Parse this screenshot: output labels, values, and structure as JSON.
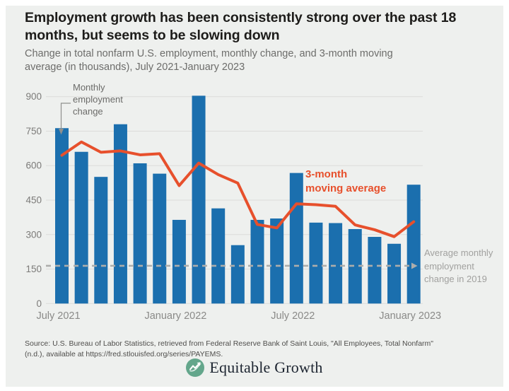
{
  "header": {
    "title_lines": [
      "Employment growth has been consistently strong over the past 18",
      "months, but seems to be slowing down"
    ],
    "subtitle_lines": [
      "Change in total nonfarm U.S. employment, monthly change, and 3-month moving",
      "average (in thousands), July 2021-January 2023"
    ]
  },
  "chart_data": {
    "type": "bar",
    "title": "Change in total nonfarm U.S. employment, monthly change, and 3-month moving average (in thousands), July 2021-January 2023",
    "categories": [
      "Jul 2021",
      "Aug 2021",
      "Sep 2021",
      "Oct 2021",
      "Nov 2021",
      "Dec 2021",
      "Jan 2022",
      "Feb 2022",
      "Mar 2022",
      "Apr 2022",
      "May 2022",
      "Jun 2022",
      "Jul 2022",
      "Aug 2022",
      "Sep 2022",
      "Oct 2022",
      "Nov 2022",
      "Dec 2022",
      "Jan 2023"
    ],
    "series": [
      {
        "name": "Monthly employment change",
        "type": "bar",
        "color": "#1b6fae",
        "values": [
          763,
          660,
          551,
          780,
          610,
          565,
          364,
          904,
          414,
          254,
          364,
          370,
          568,
          352,
          350,
          324,
          290,
          260,
          517
        ]
      },
      {
        "name": "3-month moving average",
        "type": "line",
        "color": "#e7502c",
        "values": [
          645,
          703,
          658,
          664,
          647,
          652,
          513,
          611,
          561,
          524,
          344,
          329,
          434,
          430,
          423,
          342,
          321,
          291,
          356
        ]
      }
    ],
    "baseline": {
      "value": 164,
      "label": "Average monthly employment change in 2019",
      "color": "#adadab"
    },
    "xlabel": "",
    "ylabel": "",
    "ylim": [
      0,
      900
    ],
    "yticks": [
      0,
      150,
      300,
      450,
      600,
      750,
      900
    ],
    "xticks": [
      {
        "index": 0,
        "label": "July 2021"
      },
      {
        "index": 6,
        "label": "January 2022"
      },
      {
        "index": 12,
        "label": "July 2022"
      },
      {
        "index": 18,
        "label": "January 2023"
      }
    ],
    "grid": "horizontal",
    "legend_position": "annotations-on-chart",
    "annotations": {
      "bar_label": "Monthly\nemployment\nchange",
      "line_label": "3-month\nmoving average",
      "baseline_label": "Average monthly\nemployment\nchange in 2019"
    }
  },
  "source": {
    "lines": [
      "Source: U.S. Bureau of Labor Statistics, retrieved from Federal Reserve Bank of Saint Louis, \"All Employees, Total Nonfarm\"",
      "(n.d.), available at https://fred.stlouisfed.org/series/PAYEMS."
    ]
  },
  "logo": {
    "text": "Equitable Growth",
    "icon_color": "#63a68b"
  }
}
